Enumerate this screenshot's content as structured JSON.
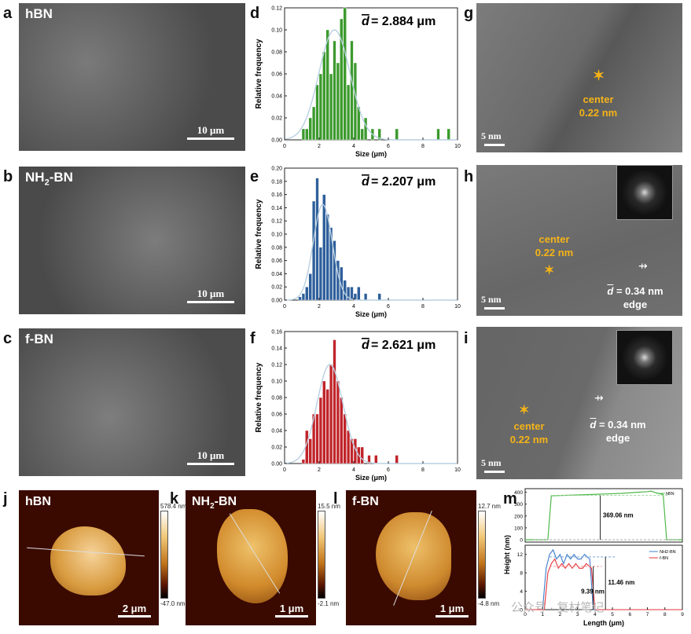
{
  "panels": {
    "a": {
      "letter": "a",
      "sample": "hBN",
      "scale": "10 μm"
    },
    "b": {
      "letter": "b",
      "sample": "NH2-BN",
      "scale": "10 μm"
    },
    "c": {
      "letter": "c",
      "sample": "f-BN",
      "scale": "10 μm"
    },
    "d": {
      "letter": "d",
      "mean": "= 2.884 μm"
    },
    "e": {
      "letter": "e",
      "mean": "= 2.207 μm"
    },
    "f": {
      "letter": "f",
      "mean": "= 2.621 μm"
    },
    "g": {
      "letter": "g",
      "scale": "5 nm",
      "center_label": "center",
      "center_value": "0.22 nm"
    },
    "h": {
      "letter": "h",
      "scale": "5 nm",
      "center_label": "center",
      "center_value": "0.22 nm",
      "edge_value": "= 0.34 nm",
      "edge_label": "edge"
    },
    "i": {
      "letter": "i",
      "scale": "5 nm",
      "center_label": "center",
      "center_value": "0.22 nm",
      "edge_value": "= 0.34 nm",
      "edge_label": "edge"
    },
    "j": {
      "letter": "j",
      "sample": "hBN",
      "scale": "2 μm",
      "cb_max": "578.4 nm",
      "cb_min": "-47.0 nm"
    },
    "k": {
      "letter": "k",
      "sample": "NH2-BN",
      "scale": "1 μm",
      "cb_max": "15.5 nm",
      "cb_min": "-2.1 nm"
    },
    "l": {
      "letter": "l",
      "sample": "f-BN",
      "scale": "1 μm",
      "cb_max": "12.7 nm",
      "cb_min": "-4.8 nm"
    },
    "m": {
      "letter": "m"
    }
  },
  "watermark": "公众号 · 复材笔记",
  "colors": {
    "green": "#3c9a2e",
    "blue": "#2e5f9b",
    "red": "#c0242a",
    "fit": "#b9cfe0",
    "orange": "#f5b317"
  },
  "chart_data": [
    {
      "type": "bar",
      "panel": "d",
      "xlabel": "Size (μm)",
      "ylabel": "Relative frequency",
      "xlim": [
        0,
        10
      ],
      "ylim": [
        0,
        0.12
      ],
      "xticks": [
        "0",
        "2",
        "4",
        "6",
        "8",
        "10"
      ],
      "yticks": [
        "0.00",
        "0.02",
        "0.04",
        "0.06",
        "0.08",
        "0.10",
        "0.12"
      ],
      "bin_width": 0.2,
      "bins": [
        [
          1.0,
          0.01
        ],
        [
          1.2,
          0.01
        ],
        [
          1.4,
          0.02
        ],
        [
          1.6,
          0.03
        ],
        [
          1.8,
          0.05
        ],
        [
          2.0,
          0.06
        ],
        [
          2.2,
          0.08
        ],
        [
          2.4,
          0.1
        ],
        [
          2.6,
          0.06
        ],
        [
          2.8,
          0.09
        ],
        [
          3.0,
          0.07
        ],
        [
          3.2,
          0.11
        ],
        [
          3.4,
          0.12
        ],
        [
          3.6,
          0.05
        ],
        [
          3.8,
          0.09
        ],
        [
          4.0,
          0.07
        ],
        [
          4.2,
          0.03
        ],
        [
          4.4,
          0.01
        ],
        [
          4.6,
          0.02
        ],
        [
          5.0,
          0.01
        ],
        [
          5.4,
          0.01
        ],
        [
          6.4,
          0.01
        ],
        [
          8.8,
          0.01
        ],
        [
          9.4,
          0.01
        ]
      ],
      "fit": {
        "mean": 2.884,
        "sigma": 0.9,
        "peak": 0.1
      }
    },
    {
      "type": "bar",
      "panel": "e",
      "xlabel": "Size (μm)",
      "ylabel": "Relative frequency",
      "xlim": [
        0,
        10
      ],
      "ylim": [
        0,
        0.2
      ],
      "xticks": [
        "0",
        "2",
        "4",
        "6",
        "8",
        "10"
      ],
      "yticks": [
        "0.00",
        "0.02",
        "0.04",
        "0.06",
        "0.08",
        "0.10",
        "0.12",
        "0.14",
        "0.16",
        "0.18",
        "0.20"
      ],
      "bin_width": 0.2,
      "bins": [
        [
          0.8,
          0.005
        ],
        [
          1.0,
          0.01
        ],
        [
          1.2,
          0.02
        ],
        [
          1.4,
          0.04
        ],
        [
          1.6,
          0.15
        ],
        [
          1.8,
          0.185
        ],
        [
          2.0,
          0.08
        ],
        [
          2.2,
          0.16
        ],
        [
          2.4,
          0.13
        ],
        [
          2.6,
          0.11
        ],
        [
          2.8,
          0.09
        ],
        [
          3.0,
          0.06
        ],
        [
          3.2,
          0.05
        ],
        [
          3.4,
          0.03
        ],
        [
          3.6,
          0.02
        ],
        [
          3.8,
          0.02
        ],
        [
          4.0,
          0.01
        ],
        [
          4.2,
          0.02
        ],
        [
          4.6,
          0.01
        ],
        [
          5.4,
          0.01
        ]
      ],
      "fit": {
        "mean": 2.207,
        "sigma": 0.55,
        "peak": 0.145
      }
    },
    {
      "type": "bar",
      "panel": "f",
      "xlabel": "Size (μm)",
      "ylabel": "Relative frequency",
      "xlim": [
        0,
        10
      ],
      "ylim": [
        0,
        0.16
      ],
      "xticks": [
        "0",
        "2",
        "4",
        "6",
        "8",
        "10"
      ],
      "yticks": [
        "0.00",
        "0.02",
        "0.04",
        "0.06",
        "0.08",
        "0.10",
        "0.12",
        "0.14",
        "0.16"
      ],
      "bin_width": 0.2,
      "bins": [
        [
          1.0,
          0.005
        ],
        [
          1.2,
          0.04
        ],
        [
          1.4,
          0.03
        ],
        [
          1.6,
          0.06
        ],
        [
          1.8,
          0.06
        ],
        [
          2.0,
          0.08
        ],
        [
          2.2,
          0.1
        ],
        [
          2.4,
          0.09
        ],
        [
          2.6,
          0.12
        ],
        [
          2.8,
          0.15
        ],
        [
          3.0,
          0.1
        ],
        [
          3.2,
          0.08
        ],
        [
          3.4,
          0.06
        ],
        [
          3.6,
          0.04
        ],
        [
          3.8,
          0.03
        ],
        [
          4.0,
          0.03
        ],
        [
          4.2,
          0.02
        ],
        [
          4.4,
          0.02
        ],
        [
          4.8,
          0.01
        ],
        [
          5.2,
          0.01
        ],
        [
          6.4,
          0.01
        ]
      ],
      "fit": {
        "mean": 2.621,
        "sigma": 0.75,
        "peak": 0.12
      }
    },
    {
      "type": "line",
      "panel": "m-top",
      "ylabel": "Height (nm)",
      "xlim": [
        0,
        9
      ],
      "ylim": [
        -20,
        430
      ],
      "yticks": [
        "0",
        "100",
        "200",
        "300",
        "400"
      ],
      "series": [
        {
          "name": "hBN",
          "x": [
            0,
            1.1,
            1.3,
            1.5,
            2.5,
            3.5,
            4.5,
            5.5,
            6.5,
            7.0,
            7.2,
            7.5,
            7.9,
            8.1,
            9
          ],
          "y": [
            0,
            0,
            0,
            370,
            375,
            380,
            385,
            390,
            400,
            405,
            410,
            395,
            380,
            0,
            0
          ]
        }
      ],
      "annotation": "369.06 nm"
    },
    {
      "type": "line",
      "panel": "m-bottom",
      "xlabel": "Length (μm)",
      "ylabel": "Height (nm)",
      "xlim": [
        0,
        9
      ],
      "ylim": [
        0,
        14
      ],
      "xticks": [
        "0",
        "1",
        "2",
        "3",
        "4",
        "5",
        "6",
        "7",
        "8",
        "9"
      ],
      "yticks": [
        "0",
        "4",
        "8",
        "12"
      ],
      "series": [
        {
          "name": "NH2-BN",
          "x": [
            0,
            0.8,
            1.0,
            1.2,
            1.4,
            1.6,
            1.8,
            2.0,
            2.2,
            2.4,
            2.6,
            2.8,
            3.0,
            3.2,
            3.4,
            3.7,
            3.9,
            9
          ],
          "y": [
            0,
            0,
            0,
            9,
            12,
            13,
            11,
            12,
            10,
            12,
            11,
            12,
            11,
            11,
            12,
            11,
            0,
            0
          ]
        },
        {
          "name": "f-BN",
          "x": [
            0,
            0.9,
            1.1,
            1.3,
            1.5,
            1.7,
            1.9,
            2.1,
            2.3,
            2.5,
            2.7,
            2.9,
            3.1,
            3.3,
            3.5,
            3.8,
            4.0,
            9
          ],
          "y": [
            0,
            0,
            0,
            8,
            10,
            11,
            9,
            10,
            9,
            10,
            9,
            10,
            9,
            9,
            10,
            9,
            0,
            0
          ]
        }
      ],
      "annotations": [
        "9.39 nm",
        "11.46 nm"
      ]
    }
  ]
}
